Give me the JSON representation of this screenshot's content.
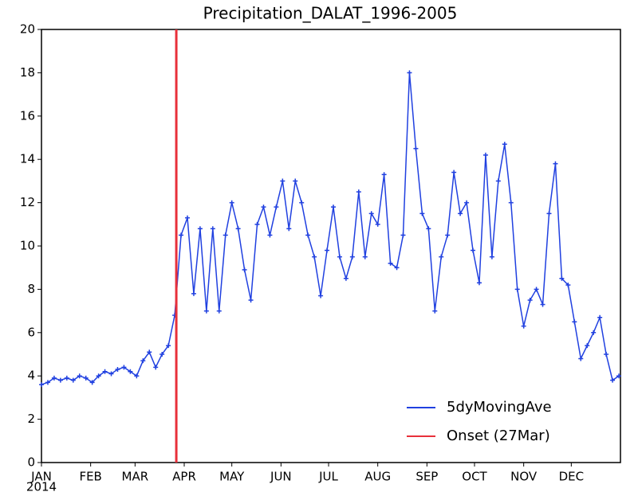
{
  "chart_data": {
    "type": "line",
    "title": "Precipitation_DALAT_1996-2005",
    "year_label": "2014",
    "x": [
      1,
      5,
      9,
      13,
      17,
      21,
      25,
      29,
      33,
      37,
      41,
      45,
      49,
      53,
      57,
      61,
      65,
      69,
      73,
      77,
      81,
      85,
      89,
      93,
      97,
      101,
      105,
      109,
      113,
      117,
      121,
      125,
      129,
      133,
      137,
      141,
      145,
      149,
      153,
      157,
      161,
      165,
      169,
      173,
      177,
      181,
      185,
      189,
      193,
      197,
      201,
      205,
      209,
      213,
      217,
      221,
      225,
      229,
      233,
      237,
      241,
      245,
      249,
      253,
      257,
      261,
      265,
      269,
      273,
      277,
      281,
      285,
      289,
      293,
      297,
      301,
      305,
      309,
      313,
      317,
      321,
      325,
      329,
      333,
      337,
      341,
      345,
      349,
      353,
      357,
      361,
      365
    ],
    "series": [
      {
        "name": "5dyMovingAve",
        "color": "#2040e0",
        "values": [
          3.6,
          3.7,
          3.9,
          3.8,
          3.9,
          3.8,
          4.0,
          3.9,
          3.7,
          4.0,
          4.2,
          4.1,
          4.3,
          4.4,
          4.2,
          4.0,
          4.7,
          5.1,
          4.4,
          5.0,
          5.4,
          6.8,
          10.5,
          11.3,
          7.8,
          10.8,
          7.0,
          10.8,
          7.0,
          10.5,
          12.0,
          10.8,
          8.9,
          7.5,
          11.0,
          11.8,
          10.5,
          11.8,
          13.0,
          10.8,
          13.0,
          12.0,
          10.5,
          9.5,
          7.7,
          9.8,
          11.8,
          9.5,
          8.5,
          9.5,
          12.5,
          9.5,
          11.5,
          11.0,
          13.3,
          9.2,
          9.0,
          10.5,
          18.0,
          14.5,
          11.5,
          10.8,
          7.0,
          9.5,
          10.5,
          13.4,
          11.5,
          12.0,
          9.8,
          8.3,
          14.2,
          9.5,
          13.0,
          14.7,
          12.0,
          8.0,
          6.3,
          7.5,
          8.0,
          7.3,
          11.5,
          13.8,
          8.5,
          8.2,
          6.5,
          4.8,
          5.4,
          6.0,
          6.7,
          5.0,
          3.8,
          4.0
        ]
      }
    ],
    "onset": {
      "name": "Onset (27Mar)",
      "x": 86,
      "color": "#e8303a"
    },
    "xlim": [
      1,
      366
    ],
    "xticks": [
      {
        "value": 1,
        "label": "JAN"
      },
      {
        "value": 32,
        "label": "FEB"
      },
      {
        "value": 60,
        "label": "MAR"
      },
      {
        "value": 91,
        "label": "APR"
      },
      {
        "value": 121,
        "label": "MAY"
      },
      {
        "value": 152,
        "label": "JUN"
      },
      {
        "value": 182,
        "label": "JUL"
      },
      {
        "value": 213,
        "label": "AUG"
      },
      {
        "value": 244,
        "label": "SEP"
      },
      {
        "value": 274,
        "label": "OCT"
      },
      {
        "value": 305,
        "label": "NOV"
      },
      {
        "value": 335,
        "label": "DEC"
      }
    ],
    "ylim": [
      0,
      20
    ],
    "yticks": [
      0,
      2,
      4,
      6,
      8,
      10,
      12,
      14,
      16,
      18,
      20
    ],
    "legend": "lower right"
  }
}
